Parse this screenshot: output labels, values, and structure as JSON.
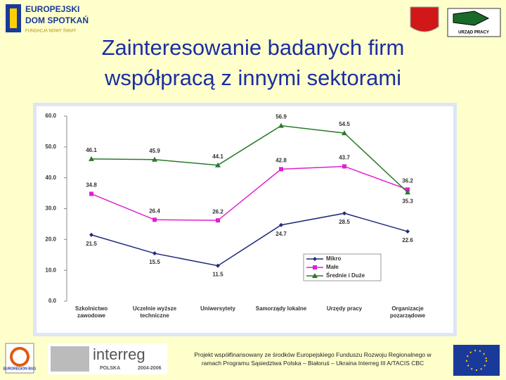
{
  "header": {
    "logo_left": [
      "EUROPEJSKI",
      "DOM SPOTKAŃ",
      "FUNDACJA NOWY ŚWIAT"
    ],
    "logo_right": "URZĄD PRACY",
    "title": "Zainteresowanie badanych firm\nwspółpracą z innymi sektorami"
  },
  "chart_data": {
    "type": "line",
    "categories": [
      "Szkolnictwo\nzawodowe",
      "Uczelnie wyższe\ntechniczne",
      "Uniwersytety",
      "Samorządy lokalne",
      "Urzędy pracy",
      "Organizacje\npozarządowe"
    ],
    "series": [
      {
        "name": "Mikro",
        "color": "#1f2a7a",
        "marker": "diamond",
        "values": [
          21.5,
          15.5,
          11.5,
          24.7,
          28.5,
          22.6
        ]
      },
      {
        "name": "Małe",
        "color": "#e020d0",
        "marker": "square",
        "values": [
          34.8,
          26.4,
          26.2,
          42.8,
          43.7,
          36.2
        ]
      },
      {
        "name": "Średnie i Duże",
        "color": "#2a7a2a",
        "marker": "triangle",
        "values": [
          46.1,
          45.9,
          44.1,
          56.9,
          54.5,
          35.3
        ]
      }
    ],
    "ylim": [
      0,
      60
    ],
    "yticks": [
      {
        "value": 0,
        "label": "0.0"
      },
      {
        "value": 10,
        "label": "10.0"
      },
      {
        "value": 20,
        "label": "20.0"
      },
      {
        "value": 30,
        "label": "30.0"
      },
      {
        "value": 40,
        "label": "40.0"
      },
      {
        "value": 50,
        "label": "50.0"
      },
      {
        "value": 60,
        "label": "60.0"
      }
    ],
    "grid": false,
    "legend": "lower-right"
  },
  "footer": {
    "logo_left": "EUROREGION BUG",
    "interreg": "interreg",
    "interreg_sub": [
      "POLSKA",
      "2004-2006"
    ],
    "text": "Projekt współfinansowany ze środków Europejskiego Funduszu Rozwoju Regionalnego w ramach Programu Sąsiedztwa Polska – Białoruś – Ukraina Interreg III A/TACIS CBC"
  }
}
